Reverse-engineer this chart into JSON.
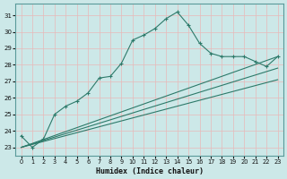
{
  "xlabel": "Humidex (Indice chaleur)",
  "bg_color": "#cce8e8",
  "grid_color": "#e8b8b8",
  "line_color": "#2d7a6a",
  "xlim": [
    -0.5,
    23.5
  ],
  "ylim": [
    22.5,
    31.7
  ],
  "xticks": [
    0,
    1,
    2,
    3,
    4,
    5,
    6,
    7,
    8,
    9,
    10,
    11,
    12,
    13,
    14,
    15,
    16,
    17,
    18,
    19,
    20,
    21,
    22,
    23
  ],
  "yticks": [
    23,
    24,
    25,
    26,
    27,
    28,
    29,
    30,
    31
  ],
  "curve1_x": [
    0,
    1,
    2,
    3,
    4,
    5,
    6,
    7,
    8,
    9,
    10,
    11,
    12,
    13,
    14,
    15,
    16,
    17,
    18,
    19,
    20,
    21,
    22,
    23
  ],
  "curve1_y": [
    23.7,
    23.0,
    23.5,
    25.0,
    25.5,
    25.8,
    26.3,
    27.2,
    27.3,
    28.1,
    29.5,
    29.8,
    30.2,
    30.8,
    31.2,
    30.4,
    29.3,
    28.7,
    28.5,
    28.5,
    28.5,
    28.2,
    27.9,
    28.5
  ],
  "line1_x": [
    0,
    23
  ],
  "line1_y": [
    23.0,
    28.5
  ],
  "line2_x": [
    0,
    23
  ],
  "line2_y": [
    23.0,
    27.8
  ],
  "line3_x": [
    0,
    23
  ],
  "line3_y": [
    23.0,
    27.1
  ]
}
